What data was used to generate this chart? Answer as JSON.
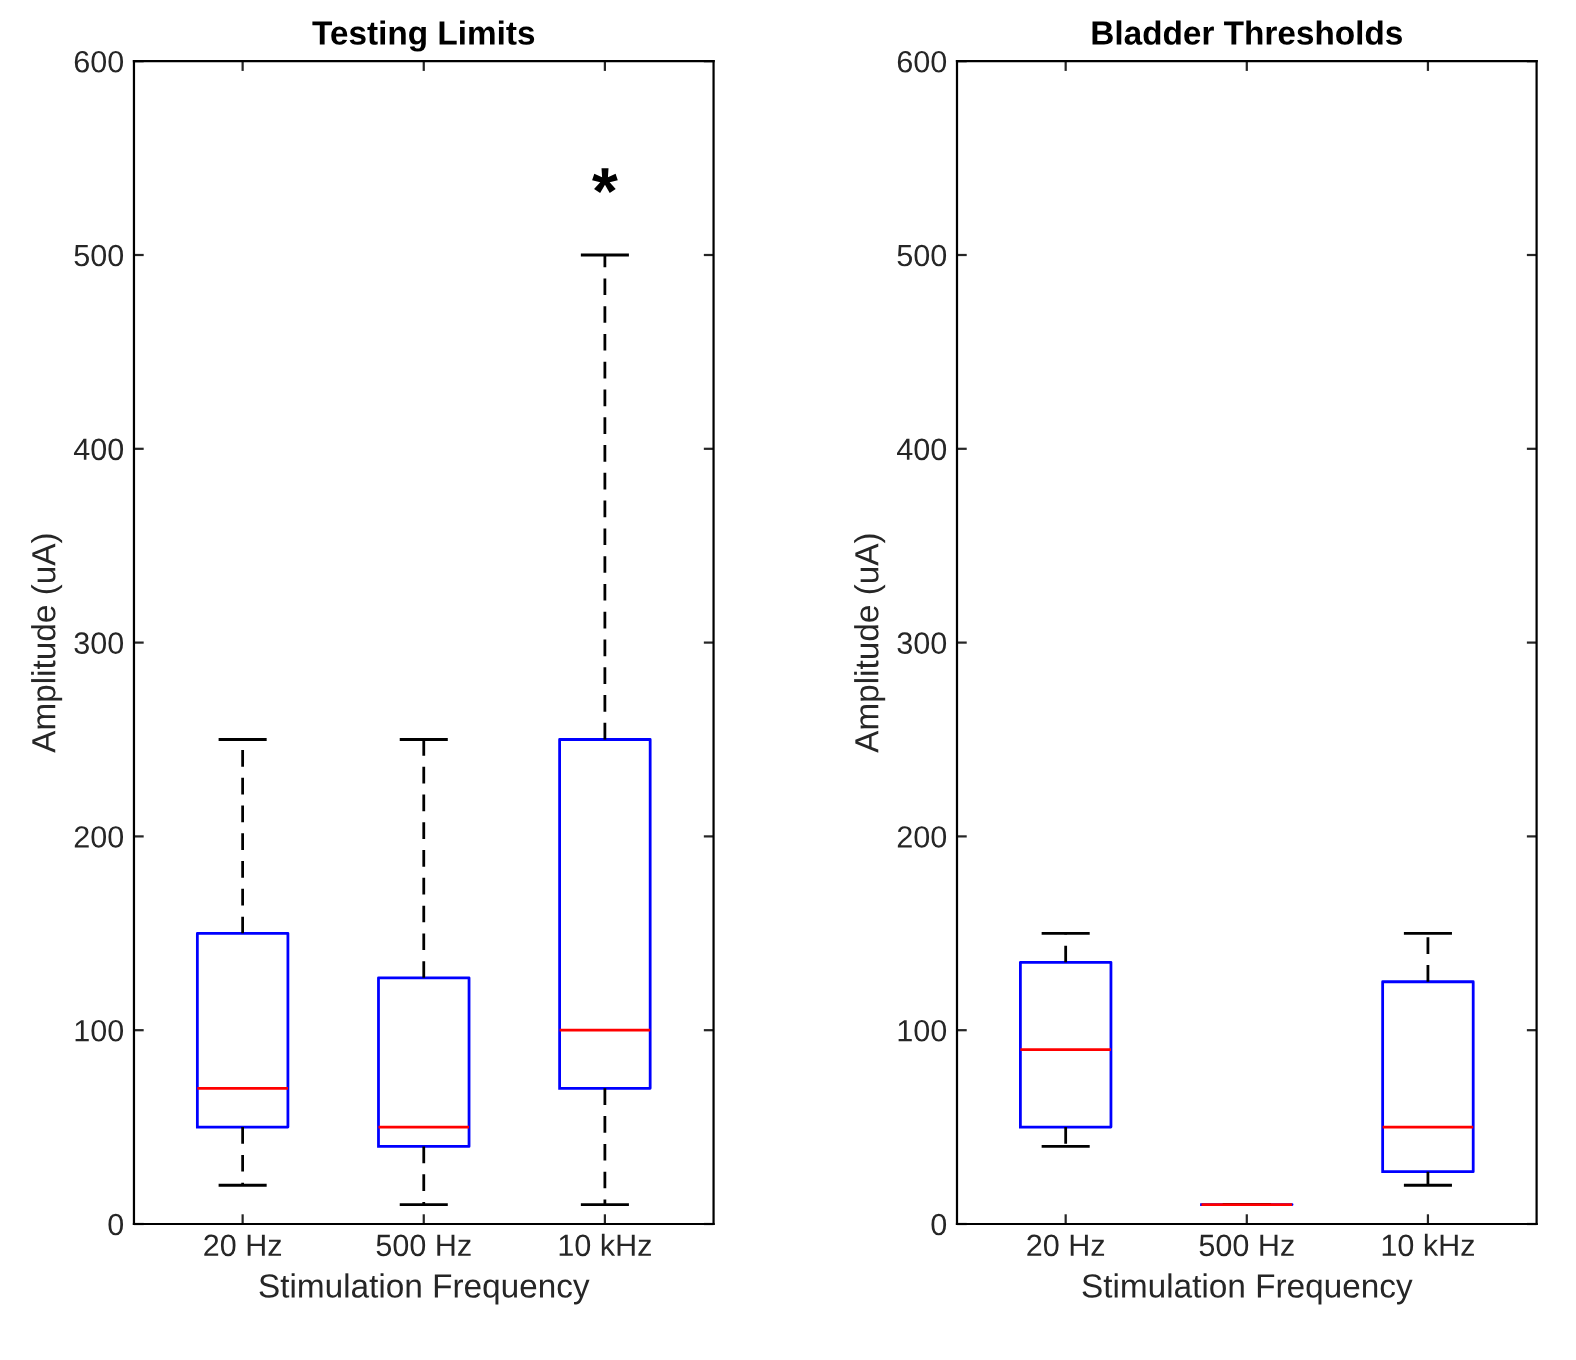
{
  "chart_data": [
    {
      "type": "box",
      "title": "Testing Limits",
      "xlabel": "Stimulation Frequency",
      "ylabel": "Amplitude (uA)",
      "categories": [
        "20 Hz",
        "500 Hz",
        "10 kHz"
      ],
      "ylim": [
        0,
        600
      ],
      "yticks": [
        0,
        100,
        200,
        300,
        400,
        500,
        600
      ],
      "grid": false,
      "legend": false,
      "series": [
        {
          "color": "#0000ff",
          "boxes": [
            {
              "low": 20,
              "q1": 50,
              "median": 70,
              "q3": 150,
              "high": 250
            },
            {
              "low": 10,
              "q1": 40,
              "median": 50,
              "q3": 127,
              "high": 250
            },
            {
              "low": 10,
              "q1": 70,
              "median": 100,
              "q3": 250,
              "high": 500
            }
          ]
        }
      ],
      "annotations": [
        "*"
      ]
    },
    {
      "type": "box",
      "title": "Bladder Thresholds",
      "xlabel": "Stimulation Frequency",
      "ylabel": "Amplitude (uA)",
      "categories": [
        "20 Hz",
        "500 Hz",
        "10 kHz"
      ],
      "ylim": [
        0,
        600
      ],
      "yticks": [
        0,
        100,
        200,
        300,
        400,
        500,
        600
      ],
      "grid": false,
      "legend": false,
      "series": [
        {
          "color": "#0000ff",
          "boxes": [
            {
              "low": 40,
              "q1": 50,
              "median": 90,
              "q3": 135,
              "high": 150
            },
            {
              "low": 10,
              "q1": 10,
              "median": 10,
              "q3": 10,
              "high": 10
            },
            {
              "low": 20,
              "q1": 27,
              "median": 50,
              "q3": 125,
              "high": 150
            }
          ]
        }
      ]
    }
  ]
}
